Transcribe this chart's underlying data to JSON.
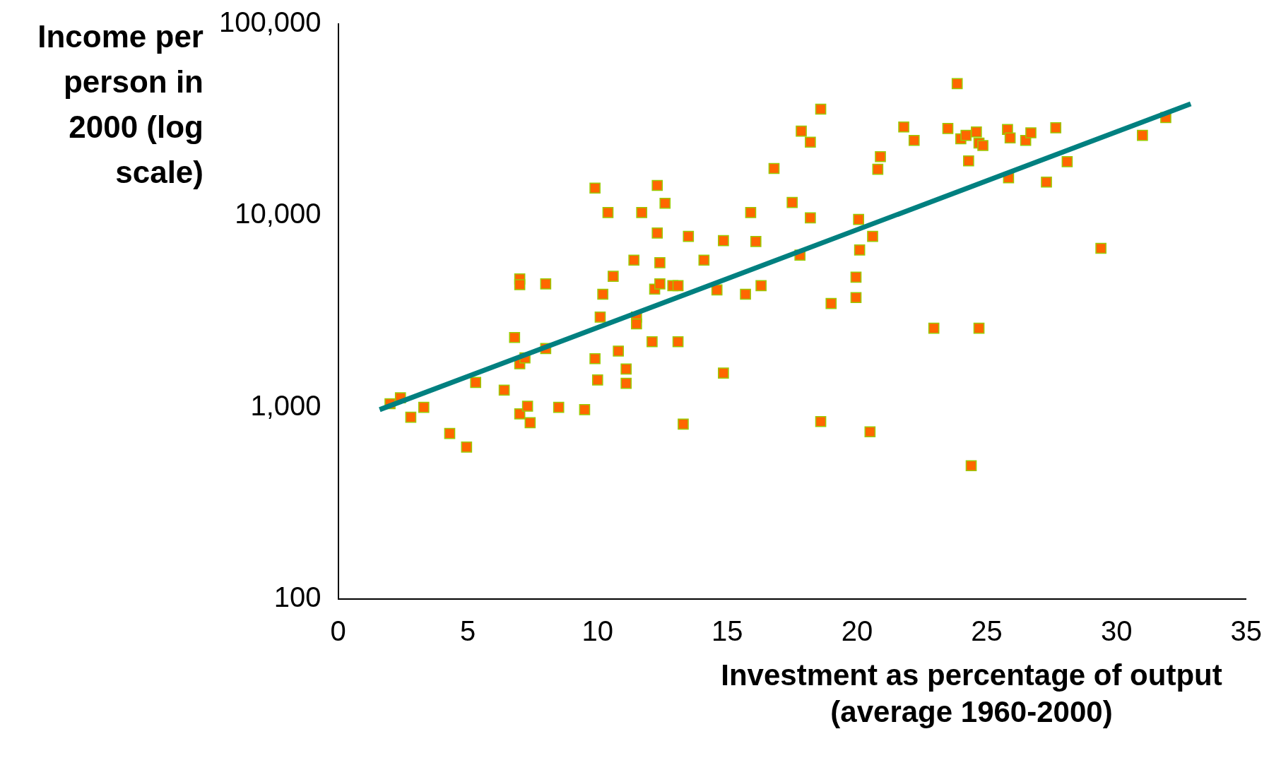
{
  "chart_data": {
    "type": "scatter",
    "ylabel": "Income per person in 2000 (log scale)",
    "xlabel": "Investment as percentage of output (average 1960-2000)",
    "xlim": [
      0,
      35
    ],
    "xticks": [
      0,
      5,
      10,
      15,
      20,
      25,
      30,
      35
    ],
    "ylim": [
      100,
      100000
    ],
    "yticks": [
      {
        "value": 100,
        "label": "100"
      },
      {
        "value": 1000,
        "label": "1,000"
      },
      {
        "value": 10000,
        "label": "10,000"
      },
      {
        "value": 100000,
        "label": "100,000"
      }
    ],
    "log": "y",
    "grid": false,
    "legend": false,
    "series": [
      {
        "marker": "square",
        "color": "#ff6600",
        "x": [
          2.0,
          2.4,
          2.8,
          3.3,
          4.3,
          4.95,
          5.3,
          6.4,
          6.8,
          7.0,
          7.0,
          7.0,
          7.0,
          7.2,
          7.3,
          7.4,
          8.0,
          8.0,
          8.5,
          9.5,
          9.9,
          9.9,
          10.0,
          10.1,
          10.2,
          10.4,
          10.6,
          10.8,
          11.1,
          11.1,
          11.4,
          11.5,
          11.5,
          11.7,
          12.1,
          12.2,
          12.3,
          12.3,
          12.4,
          12.4,
          12.6,
          12.9,
          13.1,
          13.1,
          13.3,
          13.5,
          14.1,
          14.6,
          14.85,
          14.85,
          15.7,
          15.9,
          16.1,
          16.3,
          16.8,
          17.5,
          17.8,
          17.85,
          18.2,
          18.2,
          18.6,
          18.6,
          19.0,
          19.96,
          19.96,
          20.06,
          20.1,
          20.5,
          20.6,
          20.8,
          20.9,
          21.8,
          22.2,
          22.96,
          23.5,
          23.86,
          24.0,
          24.2,
          24.3,
          24.4,
          24.6,
          24.7,
          24.7,
          24.85,
          25.8,
          25.84,
          25.9,
          26.5,
          26.7,
          27.3,
          27.66,
          28.1,
          29.4,
          31.0,
          31.9
        ],
        "values": [
          1045,
          1122,
          888,
          1000,
          731,
          621,
          1349,
          1230,
          2316,
          4677,
          4365,
          925,
          1688,
          1812,
          1014,
          832,
          4406,
          2028,
          1000,
          973,
          13930,
          1794,
          1390,
          2958,
          3892,
          10380,
          4827,
          1967,
          1586,
          1335,
          5861,
          2958,
          2725,
          10380,
          2200,
          4140,
          14380,
          8120,
          5685,
          4406,
          11610,
          4316,
          4316,
          2200,
          818,
          7798,
          5861,
          4100,
          7410,
          1509,
          3892,
          10380,
          7330,
          4316,
          17630,
          11720,
          6227,
          27620,
          24190,
          9750,
          35980,
          843,
          3483,
          4777,
          3741,
          9560,
          6622,
          746,
          7798,
          17460,
          20330,
          29040,
          24710,
          2589,
          28510,
          48870,
          25190,
          26250,
          19320,
          496,
          27350,
          2589,
          23940,
          23230,
          28180,
          15770,
          25460,
          24710,
          27060,
          14970,
          28770,
          19130,
          6760,
          26250,
          32520
        ]
      },
      {
        "type": "line",
        "marker": "none",
        "color": "#008080",
        "x": [
          1.6,
          32.86
        ],
        "values": [
          973,
          38300
        ]
      }
    ]
  }
}
